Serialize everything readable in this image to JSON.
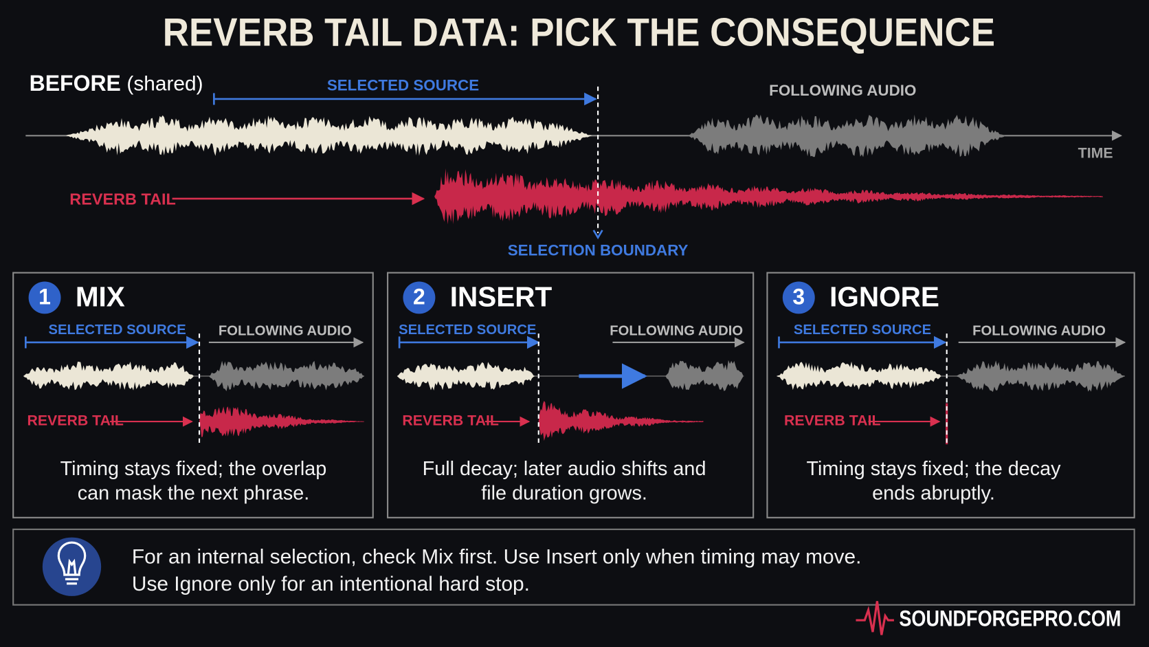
{
  "header": {
    "title": "REVERB TAIL DATA: PICK THE CONSEQUENCE"
  },
  "before": {
    "label": "BEFORE",
    "label_note": "(shared)",
    "selected_source": "SELECTED SOURCE",
    "following_audio": "FOLLOWING AUDIO",
    "time": "TIME",
    "reverb_tail": "REVERB TAIL",
    "selection_boundary": "SELECTION BOUNDARY"
  },
  "options": [
    {
      "number": "1",
      "title": "MIX",
      "selected_source": "SELECTED SOURCE",
      "following_audio": "FOLLOWING AUDIO",
      "reverb_tail": "REVERB TAIL",
      "caption": [
        "Timing stays fixed; the overlap",
        "can mask the next phrase."
      ]
    },
    {
      "number": "2",
      "title": "INSERT",
      "selected_source": "SELECTED SOURCE",
      "following_audio": "FOLLOWING AUDIO",
      "reverb_tail": "REVERB TAIL",
      "caption": [
        "Full decay; later audio shifts and",
        "file duration grows."
      ]
    },
    {
      "number": "3",
      "title": "IGNORE",
      "selected_source": "SELECTED SOURCE",
      "following_audio": "FOLLOWING AUDIO",
      "reverb_tail": "REVERB TAIL",
      "caption": [
        "Timing stays fixed; the decay",
        "ends abruptly."
      ]
    }
  ],
  "tip": {
    "lines": [
      "For an internal selection, check Mix first. Use Insert only when timing may move.",
      "Use Ignore only for an intentional hard stop."
    ]
  },
  "footer": {
    "brand": "SOUNDFORGEPRO.COM"
  }
}
